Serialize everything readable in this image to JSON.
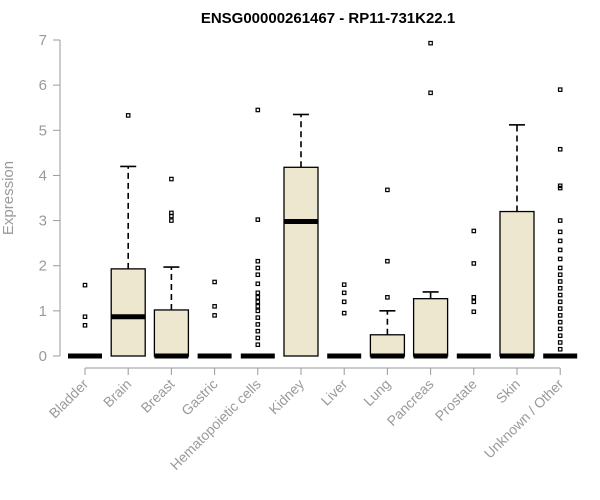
{
  "chart_data": {
    "type": "box",
    "title": "ENSG00000261467 - RP11-731K22.1",
    "xlabel": "",
    "ylabel": "Expression",
    "ylim": [
      0,
      7
    ],
    "yticks": [
      0,
      1,
      2,
      3,
      4,
      5,
      6,
      7
    ],
    "grid": false,
    "categories": [
      "Bladder",
      "Brain",
      "Breast",
      "Gastric",
      "Hematopoietic cells",
      "Kidney",
      "Liver",
      "Lung",
      "Pancreas",
      "Prostate",
      "Skin",
      "Unknown / Other"
    ],
    "boxes": [
      {
        "q1": 0,
        "median": 0,
        "q3": 0,
        "whisker_low": 0,
        "whisker_high": 0,
        "outliers": [
          0.68,
          0.87,
          1.57
        ]
      },
      {
        "q1": 0,
        "median": 0.87,
        "q3": 1.93,
        "whisker_low": 0,
        "whisker_high": 4.2,
        "outliers": [
          5.33
        ]
      },
      {
        "q1": 0,
        "median": 0,
        "q3": 1.02,
        "whisker_low": 0,
        "whisker_high": 1.97,
        "outliers": [
          3.0,
          3.1,
          3.17,
          3.92
        ]
      },
      {
        "q1": 0,
        "median": 0,
        "q3": 0,
        "whisker_low": 0,
        "whisker_high": 0,
        "outliers": [
          0.9,
          1.1,
          1.64
        ]
      },
      {
        "q1": 0,
        "median": 0,
        "q3": 0,
        "whisker_low": 0,
        "whisker_high": 0,
        "outliers": [
          0.25,
          0.4,
          0.55,
          0.7,
          0.85,
          1.0,
          1.1,
          1.2,
          1.3,
          1.4,
          1.6,
          1.8,
          1.95,
          2.1,
          3.02,
          5.45
        ]
      },
      {
        "q1": 0,
        "median": 2.98,
        "q3": 4.18,
        "whisker_low": 0,
        "whisker_high": 5.35,
        "outliers": []
      },
      {
        "q1": 0,
        "median": 0,
        "q3": 0,
        "whisker_low": 0,
        "whisker_high": 0,
        "outliers": [
          0.95,
          1.2,
          1.4,
          1.58
        ]
      },
      {
        "q1": 0,
        "median": 0,
        "q3": 0.47,
        "whisker_low": 0,
        "whisker_high": 1.0,
        "outliers": [
          1.3,
          2.1,
          3.68
        ]
      },
      {
        "q1": 0,
        "median": 0,
        "q3": 1.27,
        "whisker_low": 0,
        "whisker_high": 1.42,
        "outliers": [
          5.83,
          6.93
        ]
      },
      {
        "q1": 0,
        "median": 0,
        "q3": 0,
        "whisker_low": 0,
        "whisker_high": 0,
        "outliers": [
          0.98,
          1.2,
          1.3,
          2.05,
          2.77
        ]
      },
      {
        "q1": 0,
        "median": 0,
        "q3": 3.2,
        "whisker_low": 0,
        "whisker_high": 5.12,
        "outliers": []
      },
      {
        "q1": 0,
        "median": 0,
        "q3": 0,
        "whisker_low": 0,
        "whisker_high": 0,
        "outliers": [
          0.15,
          0.3,
          0.45,
          0.6,
          0.75,
          0.9,
          1.05,
          1.2,
          1.35,
          1.5,
          1.65,
          1.8,
          1.95,
          2.15,
          2.35,
          2.55,
          2.75,
          3.0,
          3.72,
          3.77,
          4.58,
          5.9
        ]
      }
    ]
  }
}
